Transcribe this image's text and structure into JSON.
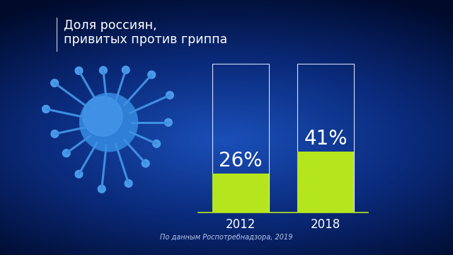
{
  "chart_data": {
    "type": "bar",
    "title": "Доля россиян,\nпривитых против гриппа",
    "categories": [
      "2012",
      "2018"
    ],
    "values": [
      26,
      41
    ],
    "value_labels": [
      "26%",
      "41%"
    ],
    "color": "#b5e61d",
    "ylim": [
      0,
      100
    ],
    "data_labels": true,
    "tick_labels": "x",
    "source": "По данным Роспотребнадзора, 2019"
  }
}
